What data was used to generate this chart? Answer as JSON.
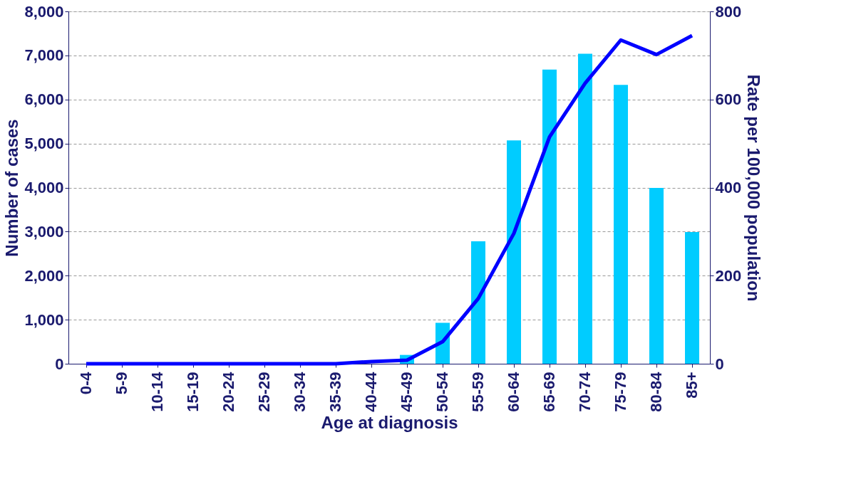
{
  "chart_data": {
    "type": "bar",
    "xlabel": "Age at diagnosis",
    "ylabel": "Number of cases",
    "y2label": "Rate per 100,000 population",
    "categories": [
      "0-4",
      "5-9",
      "10-14",
      "15-19",
      "20-24",
      "25-29",
      "30-34",
      "35-39",
      "40-44",
      "45-49",
      "50-54",
      "55-59",
      "60-64",
      "65-69",
      "70-74",
      "75-79",
      "80-84",
      "85+"
    ],
    "series": [
      {
        "color": "#00ccff",
        "values": [
          0,
          0,
          0,
          0,
          0,
          0,
          0,
          0,
          0,
          200,
          930,
          2780,
          5070,
          6680,
          7040,
          6330,
          3990,
          2990
        ]
      },
      {
        "type": "line",
        "axis": "y2",
        "color": "#0000ff",
        "values": [
          0,
          0,
          0,
          0,
          0,
          0,
          0,
          0,
          5,
          8,
          50,
          148,
          296,
          515,
          637,
          735,
          702,
          745
        ]
      }
    ],
    "ylim": [
      0,
      8000
    ],
    "yticks": [
      {
        "value": 0,
        "label": "0"
      },
      {
        "value": 1000,
        "label": "1,000"
      },
      {
        "value": 2000,
        "label": "2,000"
      },
      {
        "value": 3000,
        "label": "3,000"
      },
      {
        "value": 4000,
        "label": "4,000"
      },
      {
        "value": 5000,
        "label": "5,000"
      },
      {
        "value": 6000,
        "label": "6,000"
      },
      {
        "value": 7000,
        "label": "7,000"
      },
      {
        "value": 8000,
        "label": "8,000"
      }
    ],
    "y2lim": [
      0,
      800
    ],
    "y2ticks": [
      0,
      200,
      400,
      600,
      800
    ],
    "grid": "y",
    "line_style": "solid",
    "marker": "none"
  }
}
